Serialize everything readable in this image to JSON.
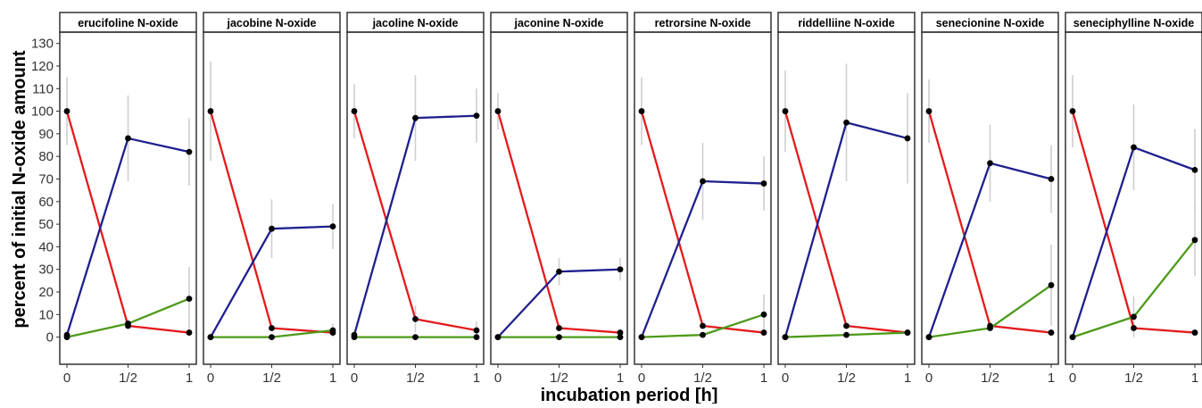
{
  "chart_data": {
    "type": "line",
    "facet_titles": [
      "erucifoline N-oxide",
      "jacobine N-oxide",
      "jacoline N-oxide",
      "jaconine N-oxide",
      "retrorsine N-oxide",
      "riddelliine N-oxide",
      "senecionine N-oxide",
      "seneciphylline N-oxide"
    ],
    "x": [
      "0",
      "1/2",
      "1"
    ],
    "xlabel": "incubation period [h]",
    "ylabel": "percent of initial N-oxide amount",
    "ylim": [
      -12,
      135
    ],
    "yticks": [
      0,
      10,
      20,
      30,
      40,
      50,
      60,
      70,
      80,
      90,
      100,
      110,
      120,
      130
    ],
    "grid": false,
    "legend": "none",
    "colors": {
      "red": "#e31a1c",
      "blue": "#1f1f8f",
      "green": "#4d9a1a",
      "error": "#cfcfcf",
      "point": "#000000"
    },
    "facets": [
      {
        "series": [
          {
            "color": "red",
            "values": [
              100,
              5,
              2
            ],
            "error": [
              15,
              0,
              0
            ]
          },
          {
            "color": "blue",
            "values": [
              1,
              88,
              82
            ],
            "error": [
              0,
              19,
              15
            ]
          },
          {
            "color": "green",
            "values": [
              0,
              6,
              17
            ],
            "error": [
              0,
              0,
              14
            ]
          }
        ]
      },
      {
        "series": [
          {
            "color": "red",
            "values": [
              100,
              4,
              2
            ],
            "error": [
              22,
              0,
              0
            ]
          },
          {
            "color": "blue",
            "values": [
              0,
              48,
              49
            ],
            "error": [
              0,
              13,
              10
            ]
          },
          {
            "color": "green",
            "values": [
              0,
              0,
              3
            ],
            "error": [
              0,
              0,
              3
            ]
          }
        ]
      },
      {
        "series": [
          {
            "color": "red",
            "values": [
              100,
              8,
              3
            ],
            "error": [
              12,
              6,
              4
            ]
          },
          {
            "color": "blue",
            "values": [
              1,
              97,
              98
            ],
            "error": [
              0,
              19,
              12
            ]
          },
          {
            "color": "green",
            "values": [
              0,
              0,
              0
            ],
            "error": [
              0,
              0,
              0
            ]
          }
        ]
      },
      {
        "series": [
          {
            "color": "red",
            "values": [
              100,
              4,
              2
            ],
            "error": [
              8,
              0,
              0
            ]
          },
          {
            "color": "blue",
            "values": [
              0,
              29,
              30
            ],
            "error": [
              0,
              6,
              5
            ]
          },
          {
            "color": "green",
            "values": [
              0,
              0,
              0
            ],
            "error": [
              0,
              0,
              0
            ]
          }
        ]
      },
      {
        "series": [
          {
            "color": "red",
            "values": [
              100,
              5,
              2
            ],
            "error": [
              15,
              0,
              0
            ]
          },
          {
            "color": "blue",
            "values": [
              0,
              69,
              68
            ],
            "error": [
              0,
              17,
              12
            ]
          },
          {
            "color": "green",
            "values": [
              0,
              1,
              10
            ],
            "error": [
              0,
              0,
              9
            ]
          }
        ]
      },
      {
        "series": [
          {
            "color": "red",
            "values": [
              100,
              5,
              2
            ],
            "error": [
              18,
              0,
              0
            ]
          },
          {
            "color": "blue",
            "values": [
              0,
              95,
              88
            ],
            "error": [
              0,
              26,
              20
            ]
          },
          {
            "color": "green",
            "values": [
              0,
              1,
              2
            ],
            "error": [
              0,
              0,
              0
            ]
          }
        ]
      },
      {
        "series": [
          {
            "color": "red",
            "values": [
              100,
              5,
              2
            ],
            "error": [
              14,
              0,
              0
            ]
          },
          {
            "color": "blue",
            "values": [
              0,
              77,
              70
            ],
            "error": [
              0,
              17,
              15
            ]
          },
          {
            "color": "green",
            "values": [
              0,
              4,
              23
            ],
            "error": [
              0,
              0,
              18
            ]
          }
        ]
      },
      {
        "series": [
          {
            "color": "red",
            "values": [
              100,
              4,
              2
            ],
            "error": [
              16,
              0,
              0
            ]
          },
          {
            "color": "blue",
            "values": [
              0,
              84,
              74
            ],
            "error": [
              0,
              19,
              18
            ]
          },
          {
            "color": "green",
            "values": [
              0,
              9,
              43
            ],
            "error": [
              0,
              9,
              16
            ]
          }
        ]
      }
    ]
  }
}
